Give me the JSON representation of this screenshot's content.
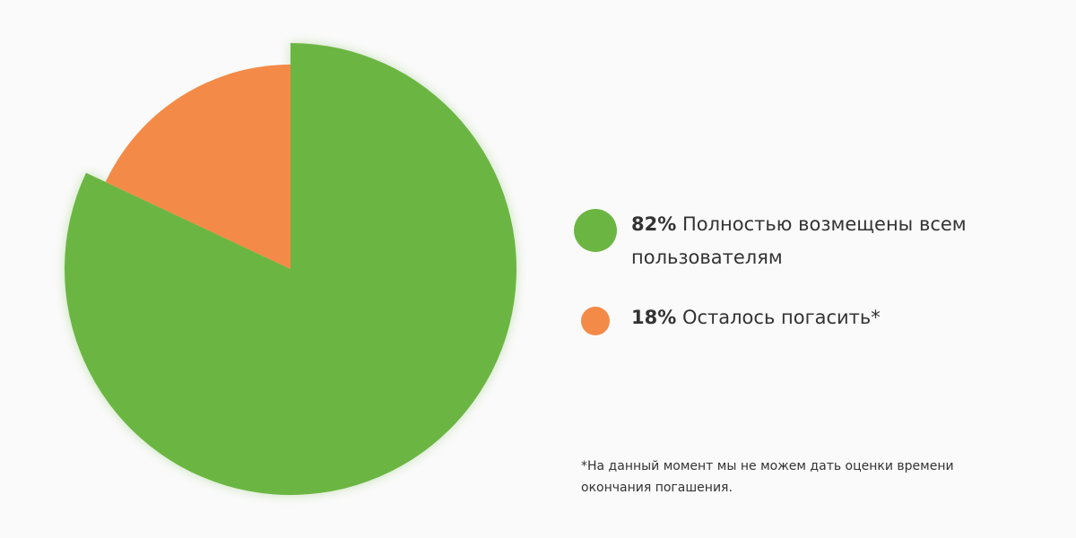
{
  "chart_data": {
    "type": "pie",
    "slices": [
      {
        "label": "Полностью возмещены всем пользователям",
        "value": 82,
        "value_label": "82%",
        "color": "#6bb642"
      },
      {
        "label": "Осталось погасить*",
        "value": 18,
        "value_label": "18%",
        "color": "#f48a47"
      }
    ],
    "legend_placement": "right",
    "annotation": "*На данный момент мы не можем дать оценки времени окончания погашения."
  }
}
